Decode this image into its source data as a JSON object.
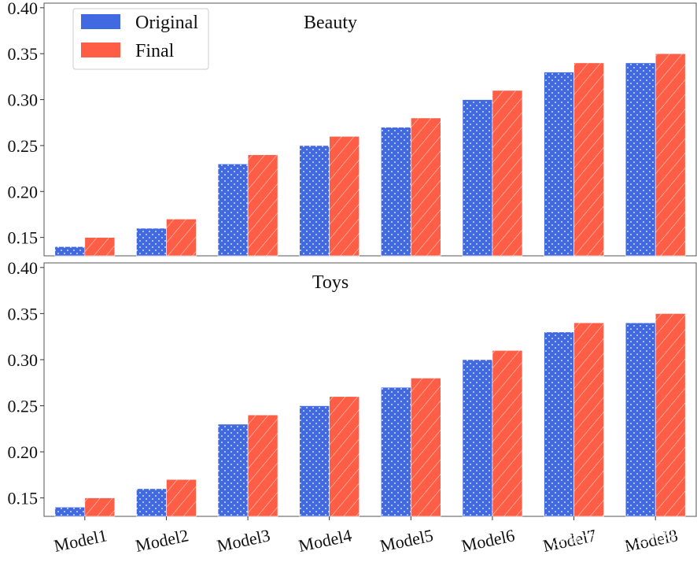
{
  "chart_data": {
    "type": "bar",
    "categories": [
      "Model1",
      "Model2",
      "Model3",
      "Model4",
      "Model5",
      "Model6",
      "Model7",
      "Model8"
    ],
    "ylim": [
      0.13,
      0.405
    ],
    "yticks": [
      "0.15",
      "0.20",
      "0.25",
      "0.30",
      "0.35",
      "0.40"
    ],
    "legend": {
      "placement": "top-left",
      "entries": [
        "Original",
        "Final"
      ]
    },
    "colors": {
      "Original": "#4169e1",
      "Final": "#fd5e45"
    },
    "panels": [
      {
        "title": "Beauty",
        "series": [
          {
            "name": "Original",
            "values": [
              0.14,
              0.16,
              0.23,
              0.25,
              0.27,
              0.3,
              0.33,
              0.34
            ]
          },
          {
            "name": "Final",
            "values": [
              0.15,
              0.17,
              0.24,
              0.26,
              0.28,
              0.31,
              0.34,
              0.35
            ]
          }
        ]
      },
      {
        "title": "Toys",
        "series": [
          {
            "name": "Original",
            "values": [
              0.14,
              0.16,
              0.23,
              0.25,
              0.27,
              0.3,
              0.33,
              0.34
            ]
          },
          {
            "name": "Final",
            "values": [
              0.15,
              0.17,
              0.24,
              0.26,
              0.28,
              0.31,
              0.34,
              0.35
            ]
          }
        ]
      }
    ]
  },
  "watermark": "@稀土掘金技术社区"
}
